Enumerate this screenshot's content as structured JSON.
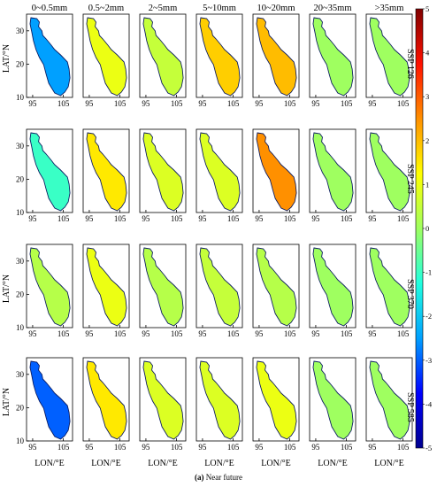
{
  "chart_data": {
    "type": "heatmap",
    "title": "",
    "column_labels": [
      "0~0.5mm",
      "0.5~2mm",
      "2~5mm",
      "5~10mm",
      "10~20mm",
      "20~35mm",
      ">35mm"
    ],
    "row_labels": [
      "SSP 126",
      "SSP 245",
      "SSP 370",
      "SSP 585"
    ],
    "ylabel": "LAT/°N",
    "xlabel": "LON/°E",
    "x_ticks": [
      "95",
      "105"
    ],
    "y_ticks": [
      "10",
      "20",
      "30"
    ],
    "colorbar": {
      "ticks": [
        "5",
        "4",
        "3",
        "2",
        "1",
        "0",
        "-1",
        "-2",
        "-3",
        "-4",
        "-5"
      ],
      "range": [
        -5,
        5
      ],
      "colors": [
        "#00008f",
        "#0000ff",
        "#00a0ff",
        "#20ffdf",
        "#9fff60",
        "#ffff00",
        "#ff9000",
        "#ff1000",
        "#800000"
      ]
    },
    "panel_values": [
      [
        -2.5,
        1.0,
        0.5,
        1.8,
        2.0,
        0.0,
        0.0
      ],
      [
        -1.0,
        1.5,
        0.8,
        0.8,
        2.5,
        0.0,
        0.0
      ],
      [
        0.3,
        1.0,
        0.3,
        0.5,
        0.3,
        0.0,
        0.0
      ],
      [
        -3.0,
        1.5,
        0.8,
        0.8,
        1.0,
        0.0,
        0.0
      ]
    ]
  },
  "caption": {
    "label": "(a)",
    "text": " Near future"
  }
}
